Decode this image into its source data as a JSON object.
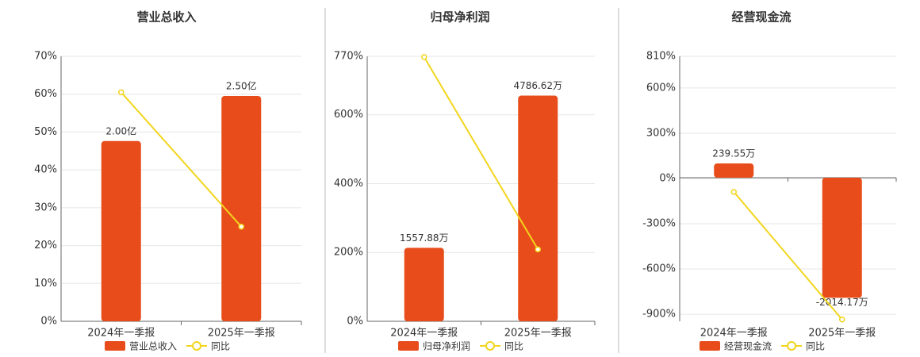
{
  "chart_data": [
    {
      "type": "bar",
      "title": "营业总收入",
      "categories": [
        "2024年一季报",
        "2025年一季报"
      ],
      "series": [
        {
          "name": "营业总收入",
          "color": "#e84c1a",
          "axis": "y2",
          "values": [
            2.0,
            2.5
          ],
          "value_labels": [
            "2.00亿",
            "2.50亿"
          ]
        },
        {
          "name": "同比",
          "color": "#f2d51c",
          "type": "line",
          "values": [
            60.5,
            25
          ]
        }
      ],
      "ylim": [
        0,
        70
      ],
      "yticks": [
        {
          "value": 0,
          "label": "0%"
        },
        {
          "value": 10,
          "label": "10%"
        },
        {
          "value": 20,
          "label": "20%"
        },
        {
          "value": 30,
          "label": "30%"
        },
        {
          "value": 40,
          "label": "40%"
        },
        {
          "value": 50,
          "label": "50%"
        },
        {
          "value": 60,
          "label": "60%"
        },
        {
          "value": 70,
          "label": "70%"
        }
      ],
      "y2lim": [
        0,
        2.94
      ],
      "grid": true
    },
    {
      "type": "bar",
      "title": "归母净利润",
      "categories": [
        "2024年一季报",
        "2025年一季报"
      ],
      "series": [
        {
          "name": "归母净利润",
          "color": "#e84c1a",
          "axis": "y2",
          "values": [
            1557.88,
            4786.62
          ],
          "value_labels": [
            "1557.88万",
            "4786.62万"
          ]
        },
        {
          "name": "同比",
          "color": "#f2d51c",
          "type": "line",
          "values": [
            768,
            209
          ]
        }
      ],
      "ylim": [
        0,
        770
      ],
      "yticks": [
        {
          "value": 0,
          "label": "0%"
        },
        {
          "value": 200,
          "label": "200%"
        },
        {
          "value": 400,
          "label": "400%"
        },
        {
          "value": 600,
          "label": "600%"
        },
        {
          "value": 770,
          "label": "770%"
        }
      ],
      "y2lim": [
        0,
        5620
      ],
      "grid": true
    },
    {
      "type": "bar",
      "title": "经营现金流",
      "categories": [
        "2024年一季报",
        "2025年一季报"
      ],
      "series": [
        {
          "name": "经营现金流",
          "color": "#e84c1a",
          "axis": "y2",
          "values": [
            239.55,
            -2014.17
          ],
          "value_labels": [
            "239.55万",
            "-2014.17万"
          ]
        },
        {
          "name": "同比",
          "color": "#f2d51c",
          "type": "line",
          "values": [
            -89,
            -935
          ]
        }
      ],
      "ylim": [
        -947,
        810
      ],
      "yticks": [
        {
          "value": -900,
          "label": "-900%"
        },
        {
          "value": -600,
          "label": "-600%"
        },
        {
          "value": -300,
          "label": "-300%"
        },
        {
          "value": 0,
          "label": "0%"
        },
        {
          "value": 300,
          "label": "300%"
        },
        {
          "value": 600,
          "label": "600%"
        },
        {
          "value": 810,
          "label": "810%"
        }
      ],
      "y2lim": [
        -2408,
        2035
      ],
      "grid": true
    }
  ]
}
